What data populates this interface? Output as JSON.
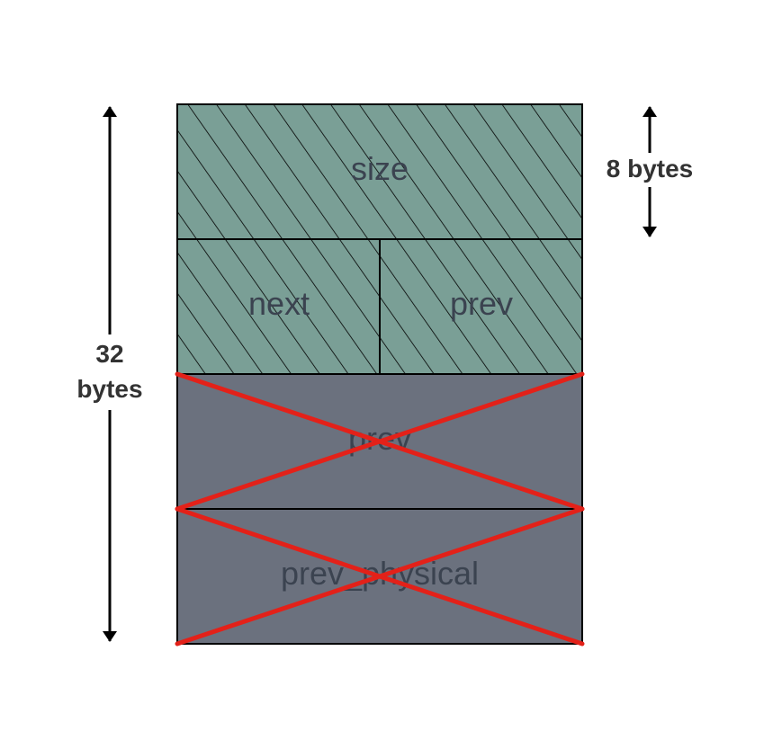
{
  "fields": {
    "size": "size",
    "next": "next",
    "prev_upper": "prev",
    "prev_lower": "prev",
    "prev_physical": "prev_physical"
  },
  "dimensions": {
    "total_value": "32",
    "total_unit": "bytes",
    "row_size": "8 bytes"
  },
  "colors": {
    "used_fill": "#7a9f96",
    "unused_fill": "#6b717e",
    "hatch": "#000000",
    "cross": "#e32119",
    "border": "#000000",
    "arrow": "#000000"
  }
}
